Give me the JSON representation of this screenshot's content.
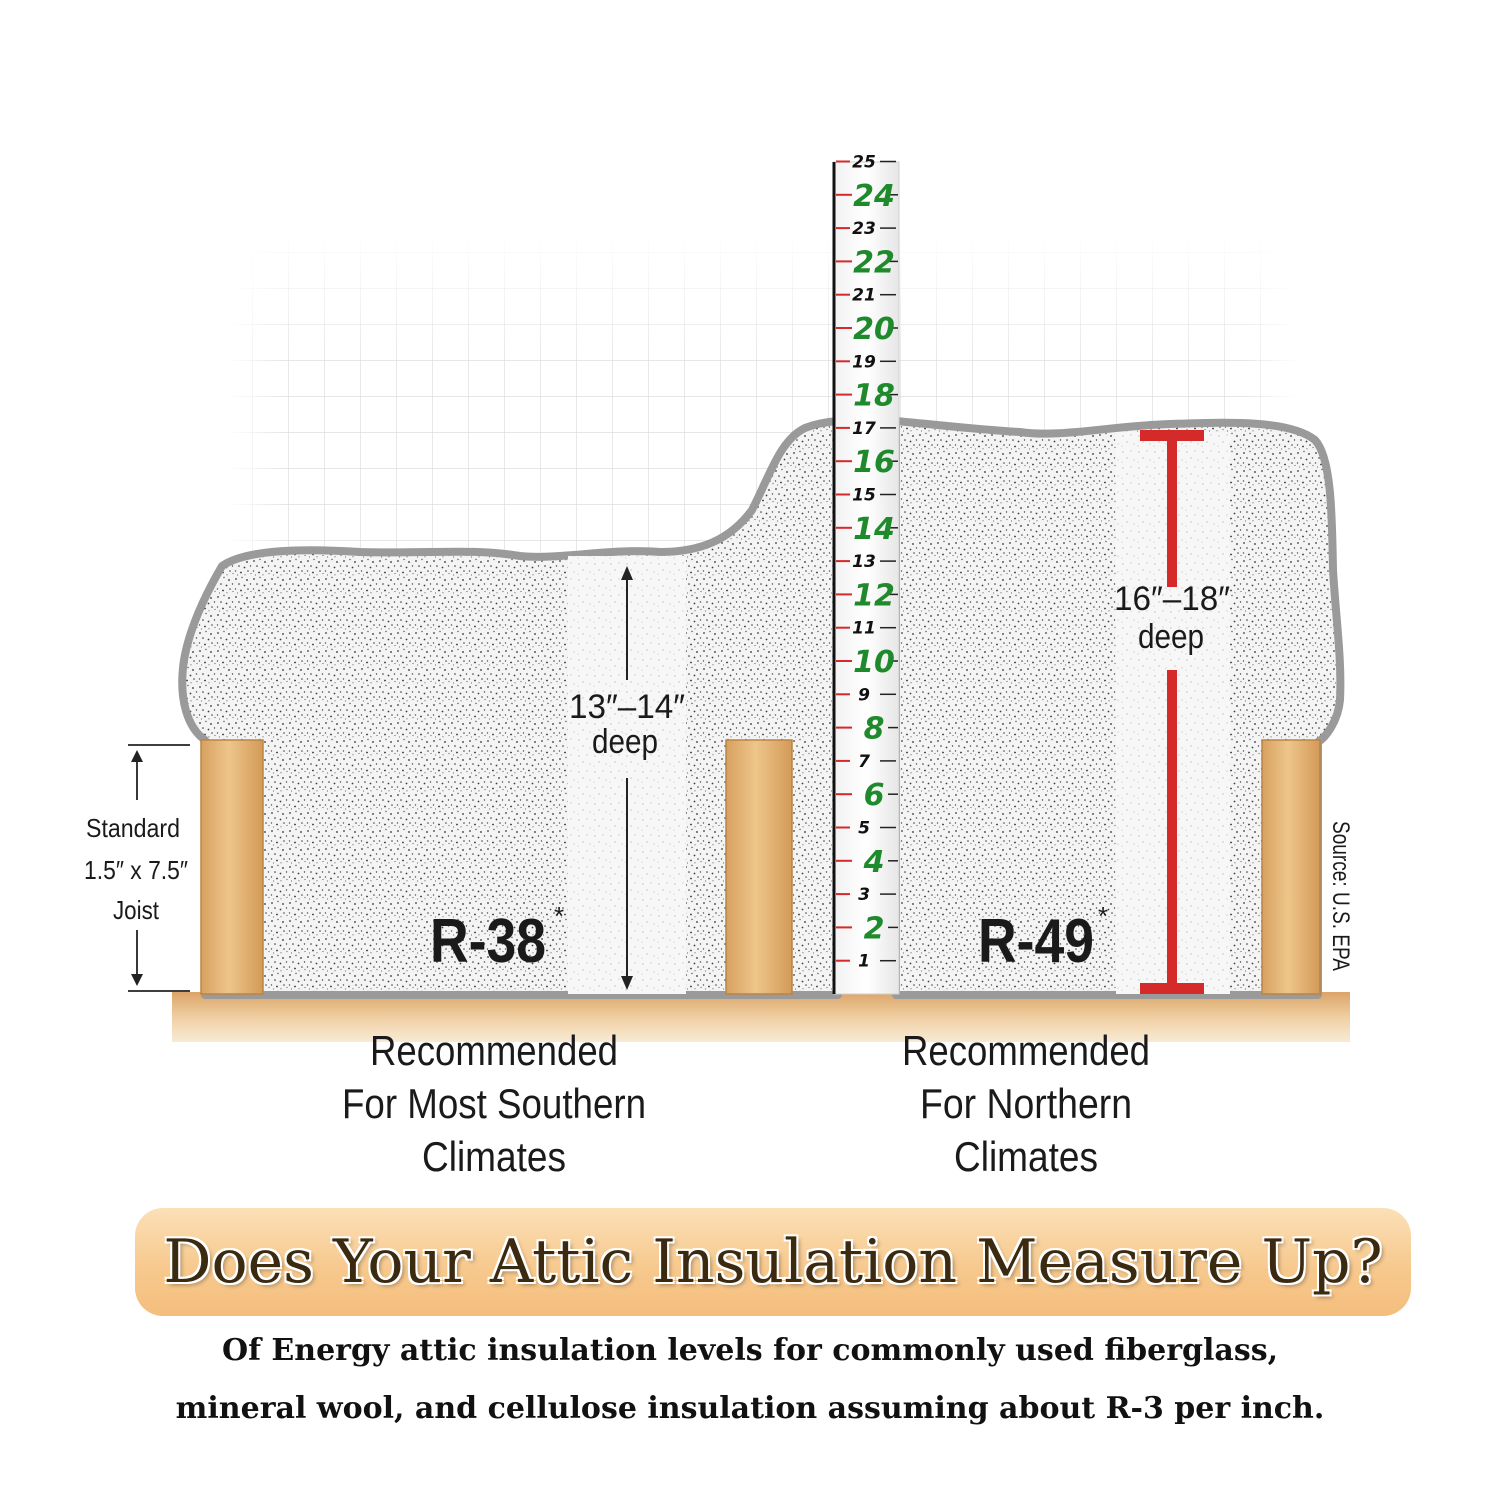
{
  "ruler": {
    "major_labels": [
      "24",
      "22",
      "20",
      "18",
      "16",
      "14",
      "12",
      "10",
      "8",
      "6",
      "4",
      "2"
    ],
    "minor_labels": [
      "25",
      "23",
      "21",
      "19",
      "17",
      "15",
      "13",
      "11",
      "9",
      "7",
      "5",
      "3",
      "1"
    ]
  },
  "joist_note": {
    "line1": "Standard",
    "line2": "1.5″ x 7.5″",
    "line3": "Joist"
  },
  "left_depth": {
    "range": "13″–14″",
    "unit": "deep"
  },
  "right_depth": {
    "range": "16″–18″",
    "unit": "deep"
  },
  "left_rating": {
    "value": "R-38",
    "mark": "*"
  },
  "right_rating": {
    "value": "R-49",
    "mark": "*"
  },
  "source": "Source: U.S. EPA",
  "left_caption": {
    "line1": "Recommended",
    "line2": "For Most Southern",
    "line3": "Climates"
  },
  "right_caption": {
    "line1": "Recommended",
    "line2": "For Northern",
    "line3": "Climates"
  },
  "banner": {
    "title": "Does Your Attic Insulation Measure Up?"
  },
  "footnote": {
    "line1": "Of Energy attic insulation levels for commonly used fiberglass,",
    "line2": "mineral wool, and cellulose insulation assuming about R-3 per inch."
  },
  "colors": {
    "wood": "#e6b979",
    "insulation_outline": "#9a9a9a",
    "measure_red": "#d42a2a",
    "ruler_green": "#1f8a2c",
    "banner": "#f7c98e"
  }
}
